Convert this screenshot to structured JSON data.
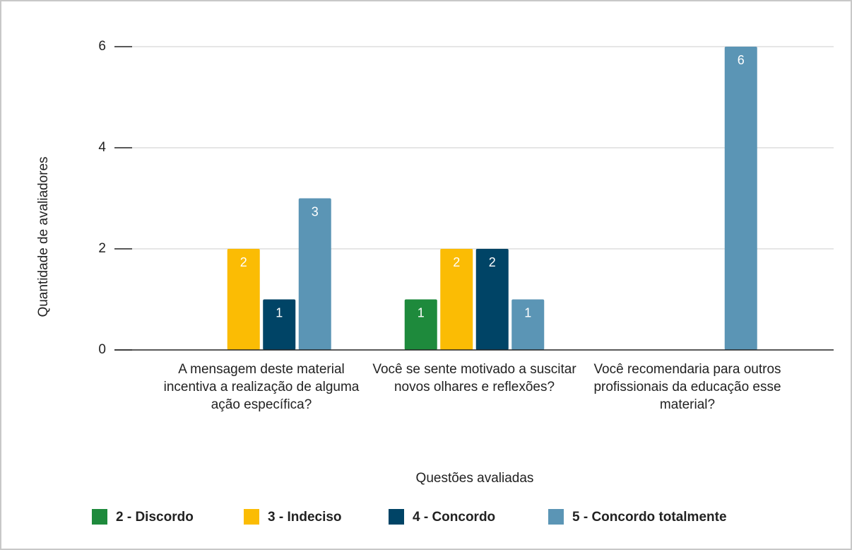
{
  "chart_data": {
    "type": "bar",
    "x_label": "Questões avaliadas",
    "y_label": "Quantidade de avaliadores",
    "categories": [
      "A mensagem deste material incentiva a realização de alguma ação específica?",
      "Você se sente motivado a suscitar novos olhares e reflexões?",
      "Você recomendaria para outros profissionais da educação esse material?"
    ],
    "series": [
      {
        "name": "2 - Discordo",
        "color": "#1e8a3c",
        "values": [
          null,
          1,
          null
        ]
      },
      {
        "name": "3 - Indeciso",
        "color": "#fbbc04",
        "values": [
          2,
          2,
          null
        ]
      },
      {
        "name": "4 - Concordo",
        "color": "#004466",
        "values": [
          1,
          2,
          null
        ]
      },
      {
        "name": "5 - Concordo totalmente",
        "color": "#5b95b5",
        "values": [
          3,
          1,
          6
        ]
      }
    ],
    "ylim": [
      0,
      6
    ],
    "yticks": [
      0,
      2,
      4,
      6
    ],
    "grid": true,
    "legend": "bottom"
  }
}
